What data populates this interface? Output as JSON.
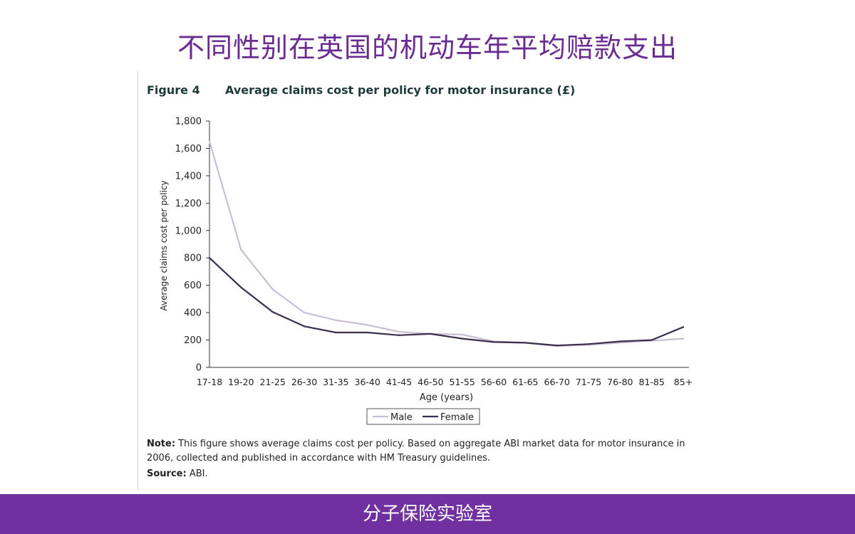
{
  "slide_title": "不同性别在英国的机动车年平均赔款支出",
  "figure": {
    "number": "Figure 4",
    "title": "Average claims cost per policy for motor insurance (£)"
  },
  "note": {
    "label": "Note:",
    "text": " This figure shows average claims cost per policy. Based on aggregate ABI market data for motor insurance in 2006, collected and published in accordance with HM Treasury guidelines."
  },
  "source": {
    "label": "Source:",
    "text": " ABI."
  },
  "footer": "分子保险实验室",
  "colors": {
    "title": "#6a2c91",
    "footer_bg": "#7030a0",
    "male": "#c8bfd6",
    "female": "#3c2f4d"
  },
  "chart_data": {
    "type": "line",
    "xlabel": "Age (years)",
    "ylabel": "Average claims cost per policy",
    "ylim": [
      0,
      1800
    ],
    "yticks": [
      0,
      200,
      400,
      600,
      800,
      1000,
      1200,
      1400,
      1600,
      1800
    ],
    "ytick_labels": [
      "0",
      "200",
      "400",
      "600",
      "800",
      "1,000",
      "1,200",
      "1,400",
      "1,600",
      "1,800"
    ],
    "categories": [
      "17-18",
      "19-20",
      "21-25",
      "26-30",
      "31-35",
      "36-40",
      "41-45",
      "46-50",
      "51-55",
      "56-60",
      "61-65",
      "66-70",
      "71-75",
      "76-80",
      "81-85",
      "85+"
    ],
    "series": [
      {
        "name": "Male",
        "color": "#c8bfd6",
        "values": [
          1650,
          860,
          570,
          400,
          345,
          310,
          260,
          245,
          240,
          190,
          180,
          155,
          165,
          180,
          195,
          210
        ]
      },
      {
        "name": "Female",
        "color": "#3c2f4d",
        "values": [
          800,
          585,
          405,
          300,
          255,
          255,
          235,
          245,
          210,
          185,
          180,
          160,
          170,
          190,
          200,
          295
        ]
      }
    ],
    "legend": "bottom-center",
    "grid": false
  }
}
